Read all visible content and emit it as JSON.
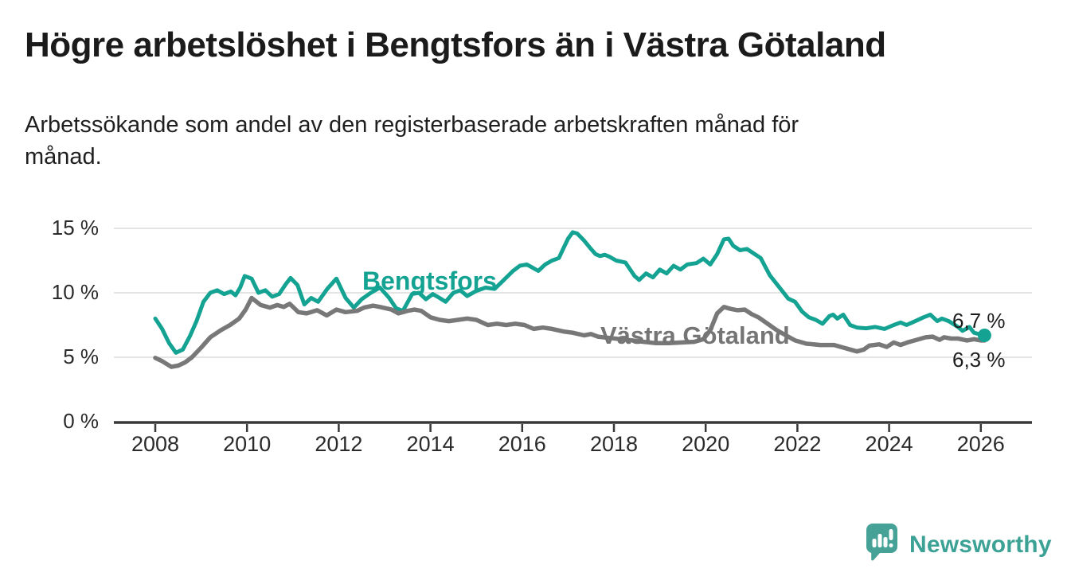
{
  "header": {
    "title": "Högre arbetslöshet i Bengtsfors än i Västra Götaland",
    "subtitle_line1": "Arbetssökande som andel av den registerbaserade arbetskraften månad för",
    "subtitle_line2": "månad."
  },
  "chart_data": {
    "type": "line",
    "title": "Högre arbetslöshet i Bengtsfors än i Västra Götaland",
    "subtitle": "Arbetssökande som andel av den registerbaserade arbetskraften månad för månad.",
    "unit": "%",
    "grid": "horizontal",
    "legend_position": "inline-labels",
    "xlim": [
      2007.1,
      2027.1
    ],
    "ylim": [
      0,
      15.6
    ],
    "x_ticks": [
      2008,
      2010,
      2012,
      2014,
      2016,
      2018,
      2020,
      2022,
      2024,
      2026
    ],
    "x_tick_labels": [
      "2008",
      "2010",
      "2012",
      "2014",
      "2016",
      "2018",
      "2020",
      "2022",
      "2024",
      "2026"
    ],
    "y_ticks": [
      0,
      5,
      10,
      15
    ],
    "y_tick_labels": [
      "0 %",
      "5 %",
      "10 %",
      "15 %"
    ],
    "colors": {
      "grid": "#dcdcdc",
      "axis": "#383838",
      "text": "#2a2a2a"
    },
    "series": [
      {
        "name": "Bengtsfors",
        "color": "#14a392",
        "end_label": "6,7 %",
        "end_value": 6.7,
        "points": [
          [
            2008.0,
            8.0
          ],
          [
            2008.15,
            7.2
          ],
          [
            2008.3,
            6.1
          ],
          [
            2008.45,
            5.35
          ],
          [
            2008.6,
            5.6
          ],
          [
            2008.75,
            6.6
          ],
          [
            2008.9,
            7.8
          ],
          [
            2009.05,
            9.3
          ],
          [
            2009.2,
            10.0
          ],
          [
            2009.35,
            10.2
          ],
          [
            2009.5,
            9.9
          ],
          [
            2009.65,
            10.1
          ],
          [
            2009.75,
            9.8
          ],
          [
            2009.85,
            10.4
          ],
          [
            2009.95,
            11.3
          ],
          [
            2010.1,
            11.1
          ],
          [
            2010.25,
            10.0
          ],
          [
            2010.4,
            10.2
          ],
          [
            2010.55,
            9.7
          ],
          [
            2010.7,
            9.9
          ],
          [
            2010.85,
            10.7
          ],
          [
            2010.95,
            11.15
          ],
          [
            2011.1,
            10.6
          ],
          [
            2011.25,
            9.1
          ],
          [
            2011.4,
            9.6
          ],
          [
            2011.55,
            9.3
          ],
          [
            2011.75,
            10.3
          ],
          [
            2011.95,
            11.1
          ],
          [
            2012.15,
            9.6
          ],
          [
            2012.33,
            8.85
          ],
          [
            2012.5,
            9.5
          ],
          [
            2012.7,
            10.0
          ],
          [
            2012.9,
            10.4
          ],
          [
            2013.1,
            9.6
          ],
          [
            2013.25,
            8.8
          ],
          [
            2013.4,
            8.6
          ],
          [
            2013.6,
            9.9
          ],
          [
            2013.75,
            10.0
          ],
          [
            2013.9,
            9.5
          ],
          [
            2014.05,
            9.9
          ],
          [
            2014.2,
            9.6
          ],
          [
            2014.33,
            9.3
          ],
          [
            2014.5,
            10.0
          ],
          [
            2014.65,
            10.2
          ],
          [
            2014.8,
            9.75
          ],
          [
            2015.0,
            10.15
          ],
          [
            2015.2,
            10.4
          ],
          [
            2015.4,
            10.3
          ],
          [
            2015.6,
            11.0
          ],
          [
            2015.8,
            11.7
          ],
          [
            2015.95,
            12.1
          ],
          [
            2016.1,
            12.2
          ],
          [
            2016.2,
            12.0
          ],
          [
            2016.35,
            11.7
          ],
          [
            2016.5,
            12.2
          ],
          [
            2016.65,
            12.5
          ],
          [
            2016.8,
            12.7
          ],
          [
            2016.9,
            13.45
          ],
          [
            2017.0,
            14.2
          ],
          [
            2017.1,
            14.7
          ],
          [
            2017.2,
            14.6
          ],
          [
            2017.35,
            14.05
          ],
          [
            2017.5,
            13.4
          ],
          [
            2017.6,
            13.0
          ],
          [
            2017.7,
            12.85
          ],
          [
            2017.8,
            12.95
          ],
          [
            2017.9,
            12.8
          ],
          [
            2018.05,
            12.5
          ],
          [
            2018.25,
            12.35
          ],
          [
            2018.45,
            11.3
          ],
          [
            2018.55,
            11.0
          ],
          [
            2018.7,
            11.5
          ],
          [
            2018.85,
            11.2
          ],
          [
            2019.0,
            11.8
          ],
          [
            2019.15,
            11.5
          ],
          [
            2019.3,
            12.1
          ],
          [
            2019.45,
            11.8
          ],
          [
            2019.6,
            12.2
          ],
          [
            2019.8,
            12.3
          ],
          [
            2019.95,
            12.65
          ],
          [
            2020.1,
            12.2
          ],
          [
            2020.25,
            13.0
          ],
          [
            2020.4,
            14.15
          ],
          [
            2020.5,
            14.2
          ],
          [
            2020.6,
            13.65
          ],
          [
            2020.75,
            13.3
          ],
          [
            2020.9,
            13.4
          ],
          [
            2021.05,
            13.05
          ],
          [
            2021.2,
            12.7
          ],
          [
            2021.4,
            11.35
          ],
          [
            2021.6,
            10.45
          ],
          [
            2021.8,
            9.55
          ],
          [
            2021.95,
            9.3
          ],
          [
            2022.1,
            8.55
          ],
          [
            2022.25,
            8.1
          ],
          [
            2022.4,
            7.9
          ],
          [
            2022.55,
            7.6
          ],
          [
            2022.7,
            8.2
          ],
          [
            2022.78,
            8.3
          ],
          [
            2022.87,
            8.0
          ],
          [
            2023.0,
            8.3
          ],
          [
            2023.15,
            7.5
          ],
          [
            2023.3,
            7.3
          ],
          [
            2023.5,
            7.25
          ],
          [
            2023.7,
            7.35
          ],
          [
            2023.9,
            7.2
          ],
          [
            2024.1,
            7.5
          ],
          [
            2024.25,
            7.7
          ],
          [
            2024.38,
            7.5
          ],
          [
            2024.6,
            7.85
          ],
          [
            2024.75,
            8.1
          ],
          [
            2024.9,
            8.3
          ],
          [
            2025.05,
            7.8
          ],
          [
            2025.15,
            8.0
          ],
          [
            2025.3,
            7.8
          ],
          [
            2025.5,
            7.35
          ],
          [
            2025.6,
            7.05
          ],
          [
            2025.75,
            7.35
          ],
          [
            2025.85,
            6.9
          ],
          [
            2026.0,
            6.75
          ],
          [
            2026.08,
            6.7
          ]
        ]
      },
      {
        "name": "Västra Götaland",
        "color": "#787878",
        "end_label": "6,3 %",
        "end_value": 6.3,
        "points": [
          [
            2008.0,
            4.95
          ],
          [
            2008.15,
            4.7
          ],
          [
            2008.35,
            4.25
          ],
          [
            2008.5,
            4.35
          ],
          [
            2008.65,
            4.6
          ],
          [
            2008.8,
            5.0
          ],
          [
            2009.0,
            5.75
          ],
          [
            2009.2,
            6.55
          ],
          [
            2009.43,
            7.1
          ],
          [
            2009.63,
            7.5
          ],
          [
            2009.83,
            8.0
          ],
          [
            2009.97,
            8.7
          ],
          [
            2010.1,
            9.6
          ],
          [
            2010.3,
            9.05
          ],
          [
            2010.5,
            8.85
          ],
          [
            2010.66,
            9.05
          ],
          [
            2010.8,
            8.9
          ],
          [
            2010.93,
            9.15
          ],
          [
            2011.12,
            8.5
          ],
          [
            2011.3,
            8.4
          ],
          [
            2011.53,
            8.65
          ],
          [
            2011.74,
            8.25
          ],
          [
            2011.95,
            8.7
          ],
          [
            2012.15,
            8.5
          ],
          [
            2012.4,
            8.6
          ],
          [
            2012.55,
            8.85
          ],
          [
            2012.75,
            9.0
          ],
          [
            2012.9,
            8.9
          ],
          [
            2013.15,
            8.7
          ],
          [
            2013.3,
            8.4
          ],
          [
            2013.5,
            8.6
          ],
          [
            2013.65,
            8.7
          ],
          [
            2013.8,
            8.6
          ],
          [
            2014.0,
            8.1
          ],
          [
            2014.2,
            7.9
          ],
          [
            2014.4,
            7.8
          ],
          [
            2014.6,
            7.9
          ],
          [
            2014.8,
            8.0
          ],
          [
            2015.0,
            7.9
          ],
          [
            2015.25,
            7.5
          ],
          [
            2015.45,
            7.6
          ],
          [
            2015.65,
            7.5
          ],
          [
            2015.85,
            7.6
          ],
          [
            2016.05,
            7.5
          ],
          [
            2016.25,
            7.2
          ],
          [
            2016.45,
            7.3
          ],
          [
            2016.65,
            7.2
          ],
          [
            2016.9,
            7.0
          ],
          [
            2017.1,
            6.9
          ],
          [
            2017.35,
            6.7
          ],
          [
            2017.5,
            6.8
          ],
          [
            2017.65,
            6.6
          ],
          [
            2017.9,
            6.5
          ],
          [
            2018.15,
            6.4
          ],
          [
            2018.4,
            6.3
          ],
          [
            2018.65,
            6.2
          ],
          [
            2018.9,
            6.1
          ],
          [
            2019.2,
            6.1
          ],
          [
            2019.5,
            6.15
          ],
          [
            2019.75,
            6.2
          ],
          [
            2019.95,
            6.4
          ],
          [
            2020.1,
            7.1
          ],
          [
            2020.25,
            8.4
          ],
          [
            2020.4,
            8.9
          ],
          [
            2020.55,
            8.75
          ],
          [
            2020.7,
            8.65
          ],
          [
            2020.85,
            8.7
          ],
          [
            2021.0,
            8.35
          ],
          [
            2021.15,
            8.1
          ],
          [
            2021.35,
            7.6
          ],
          [
            2021.55,
            7.1
          ],
          [
            2021.75,
            6.7
          ],
          [
            2021.95,
            6.3
          ],
          [
            2022.2,
            6.05
          ],
          [
            2022.5,
            5.95
          ],
          [
            2022.8,
            5.95
          ],
          [
            2023.0,
            5.75
          ],
          [
            2023.15,
            5.6
          ],
          [
            2023.3,
            5.45
          ],
          [
            2023.45,
            5.6
          ],
          [
            2023.57,
            5.9
          ],
          [
            2023.78,
            6.0
          ],
          [
            2023.95,
            5.8
          ],
          [
            2024.1,
            6.15
          ],
          [
            2024.25,
            5.95
          ],
          [
            2024.4,
            6.15
          ],
          [
            2024.6,
            6.35
          ],
          [
            2024.8,
            6.55
          ],
          [
            2024.95,
            6.6
          ],
          [
            2025.1,
            6.35
          ],
          [
            2025.2,
            6.55
          ],
          [
            2025.35,
            6.45
          ],
          [
            2025.5,
            6.45
          ],
          [
            2025.7,
            6.3
          ],
          [
            2025.85,
            6.4
          ],
          [
            2026.0,
            6.3
          ],
          [
            2026.08,
            6.3
          ]
        ]
      }
    ]
  },
  "branding": {
    "logo_text": "Newsworthy",
    "logo_color": "#3da296",
    "logo_icon": "speech-bubble-bar-chart-icon"
  }
}
